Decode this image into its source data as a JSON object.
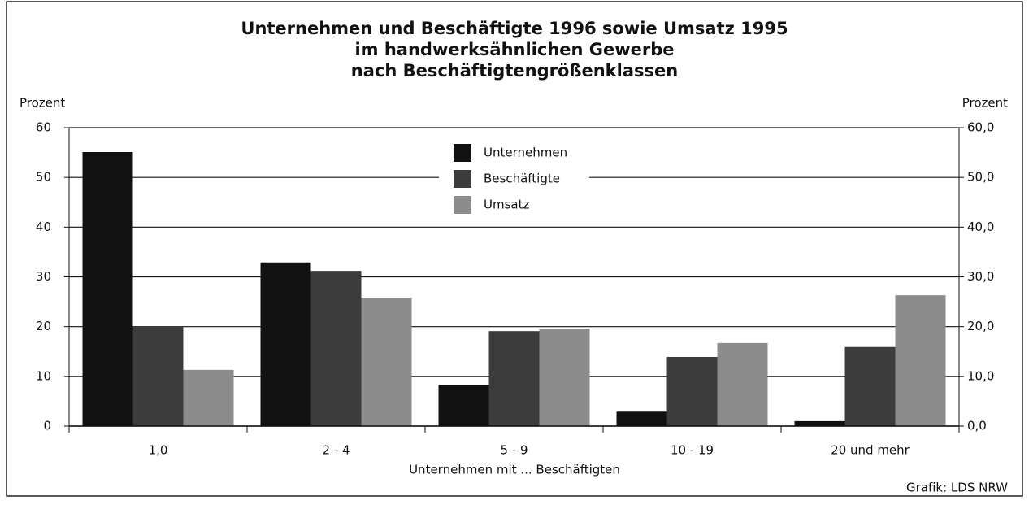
{
  "chart_data": {
    "type": "bar",
    "title": [
      "Unternehmen und Beschäftigte 1996 sowie Umsatz 1995",
      "im handwerksähnlichen Gewerbe",
      "nach Beschäftigtengrößenklassen"
    ],
    "ylabel": "Prozent",
    "y2label": "Prozent",
    "xlabel": "Unternehmen mit ... Beschäftigten",
    "source": "Grafik: LDS NRW",
    "categories": [
      "1,0",
      "2 - 4",
      "5 - 9",
      "10 - 19",
      "20 und mehr"
    ],
    "series": [
      {
        "name": "Unternehmen",
        "color": "#111111",
        "values": [
          55.1,
          32.9,
          8.3,
          2.9,
          1.0
        ]
      },
      {
        "name": "Beschäftigte",
        "color": "#3c3c3c",
        "values": [
          20.1,
          31.2,
          19.1,
          13.9,
          15.9
        ]
      },
      {
        "name": "Umsatz",
        "color": "#8c8c8c",
        "values": [
          11.3,
          25.8,
          19.6,
          16.7,
          26.3
        ]
      }
    ],
    "ylim": [
      0,
      60
    ],
    "yticks": [
      0,
      10,
      20,
      30,
      40,
      50,
      60
    ],
    "y2lim": [
      0,
      60
    ],
    "y2ticks": [
      {
        "value": 0,
        "label": "0,0"
      },
      {
        "value": 10,
        "label": "10,0"
      },
      {
        "value": 20,
        "label": "20,0"
      },
      {
        "value": 30,
        "label": "30,0"
      },
      {
        "value": 40,
        "label": "40,0"
      },
      {
        "value": 50,
        "label": "50,0"
      },
      {
        "value": 60,
        "label": "60,0"
      }
    ],
    "grid": true
  }
}
